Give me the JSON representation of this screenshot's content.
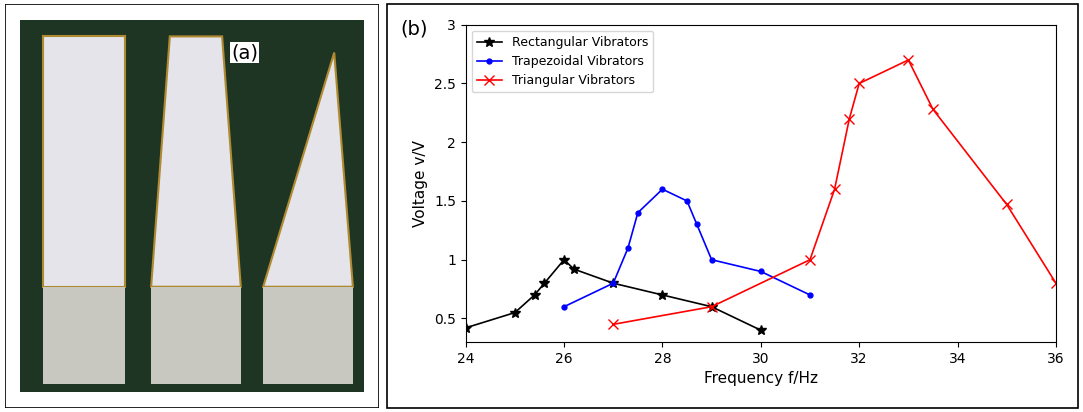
{
  "photo": {
    "label": "(a)"
  },
  "chart_data": {
    "type": "line",
    "label": "(b)",
    "x_label": "Frequency f/Hz",
    "y_label": "Voltage v/V",
    "xlim": [
      24,
      36
    ],
    "xticks": [
      24,
      26,
      28,
      30,
      32,
      34,
      36
    ],
    "ylim": [
      0.3,
      3
    ],
    "yticks": [
      0.5,
      1,
      1.5,
      2,
      2.5,
      3
    ],
    "grid": false,
    "legend": "upper left",
    "series": [
      {
        "name": "Rectangular Vibrators",
        "color": "#000000",
        "marker": "star",
        "x": [
          24,
          25,
          25.4,
          25.6,
          26,
          26.2,
          27,
          28,
          29,
          30
        ],
        "values": [
          0.42,
          0.55,
          0.7,
          0.8,
          1.0,
          0.92,
          0.8,
          0.7,
          0.6,
          0.4
        ]
      },
      {
        "name": "Trapezoidal Vibrators",
        "color": "#0000ff",
        "marker": "point",
        "x": [
          26,
          27,
          27.3,
          27.5,
          28,
          28.5,
          28.7,
          29,
          30,
          31
        ],
        "values": [
          0.6,
          0.8,
          1.1,
          1.4,
          1.6,
          1.5,
          1.3,
          1.0,
          0.9,
          0.7
        ]
      },
      {
        "name": "Triangular Vibrators",
        "color": "#ff0000",
        "marker": "x",
        "x": [
          27,
          29,
          31,
          31.5,
          31.8,
          32,
          33,
          33.5,
          35,
          36
        ],
        "values": [
          0.45,
          0.6,
          1.0,
          1.6,
          2.2,
          2.5,
          2.7,
          2.28,
          1.47,
          0.8
        ]
      }
    ]
  }
}
